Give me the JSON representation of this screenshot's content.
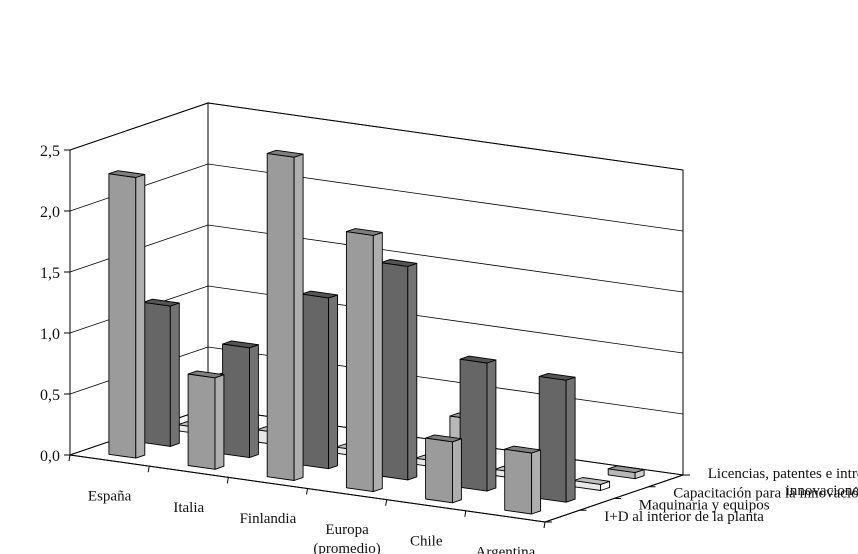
{
  "chart_data": {
    "type": "bar",
    "subtype": "3d-clustered-depth",
    "categories": [
      "España",
      "Italia",
      "Finlandia",
      "Europa (promedio)",
      "Chile",
      "Argentina"
    ],
    "series": [
      {
        "name": "I+D al interior de la planta",
        "values": [
          2.3,
          0.75,
          2.65,
          2.1,
          0.5,
          0.5
        ],
        "color": "#9b9b9b"
      },
      {
        "name": "Maquinaria y equipos",
        "values": [
          1.15,
          0.9,
          1.4,
          1.75,
          1.05,
          1.0
        ],
        "color": "#666666"
      },
      {
        "name": "Capacitación para la innovación",
        "values": [
          0.05,
          0.1,
          0.05,
          0.05,
          0.05,
          0.05
        ],
        "color": "#e8e8e8"
      },
      {
        "name": "Licencias, patentes e introducción de innovaciones",
        "values": [
          0.35,
          0.45,
          0.4,
          0.3,
          0.05,
          0.05
        ],
        "color": "#b8b8b8"
      }
    ],
    "ylim": [
      0,
      2.5
    ],
    "yticks": [
      "0,0",
      "0,5",
      "1,0",
      "1,5",
      "2,0",
      "2,5"
    ],
    "grid": true,
    "title": "",
    "xlabel": "",
    "ylabel": ""
  }
}
